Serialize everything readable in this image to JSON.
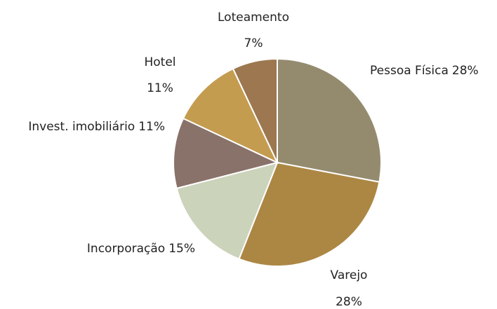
{
  "chart_data": {
    "type": "pie",
    "categories": [
      "Pessoa Física",
      "Varejo",
      "Incorporação",
      "Invest. imobiliário",
      "Hotel",
      "Loteamento"
    ],
    "values": [
      28,
      28,
      15,
      11,
      11,
      7
    ],
    "value_labels": [
      "28%",
      "28%",
      "15%",
      "11%",
      "11%",
      "7%"
    ],
    "colors": [
      "#948b6f",
      "#ac8744",
      "#ccd3bb",
      "#89726a",
      "#c49c50",
      "#9c7750"
    ]
  }
}
